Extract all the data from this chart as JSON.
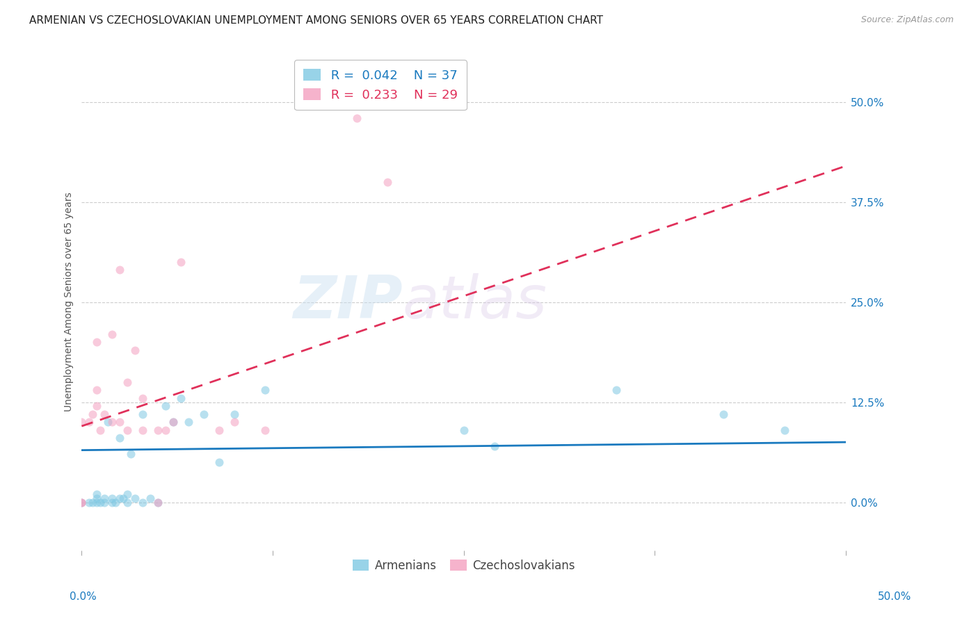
{
  "title": "ARMENIAN VS CZECHOSLOVAKIAN UNEMPLOYMENT AMONG SENIORS OVER 65 YEARS CORRELATION CHART",
  "source": "Source: ZipAtlas.com",
  "ylabel": "Unemployment Among Seniors over 65 years",
  "ytick_labels": [
    "0.0%",
    "12.5%",
    "25.0%",
    "37.5%",
    "50.0%"
  ],
  "ytick_values": [
    0.0,
    0.125,
    0.25,
    0.375,
    0.5
  ],
  "xlim": [
    0.0,
    0.5
  ],
  "ylim": [
    -0.06,
    0.56
  ],
  "armenian_color": "#7ec8e3",
  "czech_color": "#f4a0c0",
  "trendline_armenian_color": "#1a7abf",
  "trendline_czech_color": "#e0305a",
  "watermark_zip": "ZIP",
  "watermark_atlas": "atlas",
  "armenian_scatter_x": [
    0.0,
    0.005,
    0.007,
    0.01,
    0.01,
    0.01,
    0.012,
    0.015,
    0.015,
    0.017,
    0.02,
    0.02,
    0.022,
    0.025,
    0.025,
    0.027,
    0.03,
    0.03,
    0.032,
    0.035,
    0.04,
    0.04,
    0.045,
    0.05,
    0.055,
    0.06,
    0.065,
    0.07,
    0.08,
    0.09,
    0.1,
    0.12,
    0.25,
    0.27,
    0.35,
    0.42,
    0.46
  ],
  "armenian_scatter_y": [
    0.0,
    0.0,
    0.0,
    0.0,
    0.005,
    0.01,
    0.0,
    0.0,
    0.005,
    0.1,
    0.0,
    0.005,
    0.0,
    0.005,
    0.08,
    0.005,
    0.0,
    0.01,
    0.06,
    0.005,
    0.0,
    0.11,
    0.005,
    0.0,
    0.12,
    0.1,
    0.13,
    0.1,
    0.11,
    0.05,
    0.11,
    0.14,
    0.09,
    0.07,
    0.14,
    0.11,
    0.09
  ],
  "czech_scatter_x": [
    0.0,
    0.0,
    0.0,
    0.005,
    0.007,
    0.01,
    0.01,
    0.01,
    0.012,
    0.015,
    0.02,
    0.02,
    0.025,
    0.025,
    0.03,
    0.03,
    0.035,
    0.04,
    0.04,
    0.05,
    0.05,
    0.055,
    0.06,
    0.065,
    0.09,
    0.1,
    0.12,
    0.18,
    0.2
  ],
  "czech_scatter_y": [
    0.0,
    0.0,
    0.1,
    0.1,
    0.11,
    0.12,
    0.14,
    0.2,
    0.09,
    0.11,
    0.1,
    0.21,
    0.29,
    0.1,
    0.09,
    0.15,
    0.19,
    0.09,
    0.13,
    0.0,
    0.09,
    0.09,
    0.1,
    0.3,
    0.09,
    0.1,
    0.09,
    0.48,
    0.4
  ],
  "trendline_arm_x0": 0.0,
  "trendline_arm_x1": 0.5,
  "trendline_arm_y0": 0.065,
  "trendline_arm_y1": 0.075,
  "trendline_cz_x0": 0.0,
  "trendline_cz_x1": 0.5,
  "trendline_cz_y0": 0.095,
  "trendline_cz_y1": 0.42,
  "marker_size": 75,
  "marker_alpha": 0.55,
  "title_fontsize": 11,
  "axis_label_fontsize": 10,
  "tick_fontsize": 11,
  "legend_text_1": " R =  0.042    N = 37",
  "legend_text_2": " R =  0.233    N = 29",
  "bottom_legend_1": "Armenians",
  "bottom_legend_2": "Czechoslovakians"
}
